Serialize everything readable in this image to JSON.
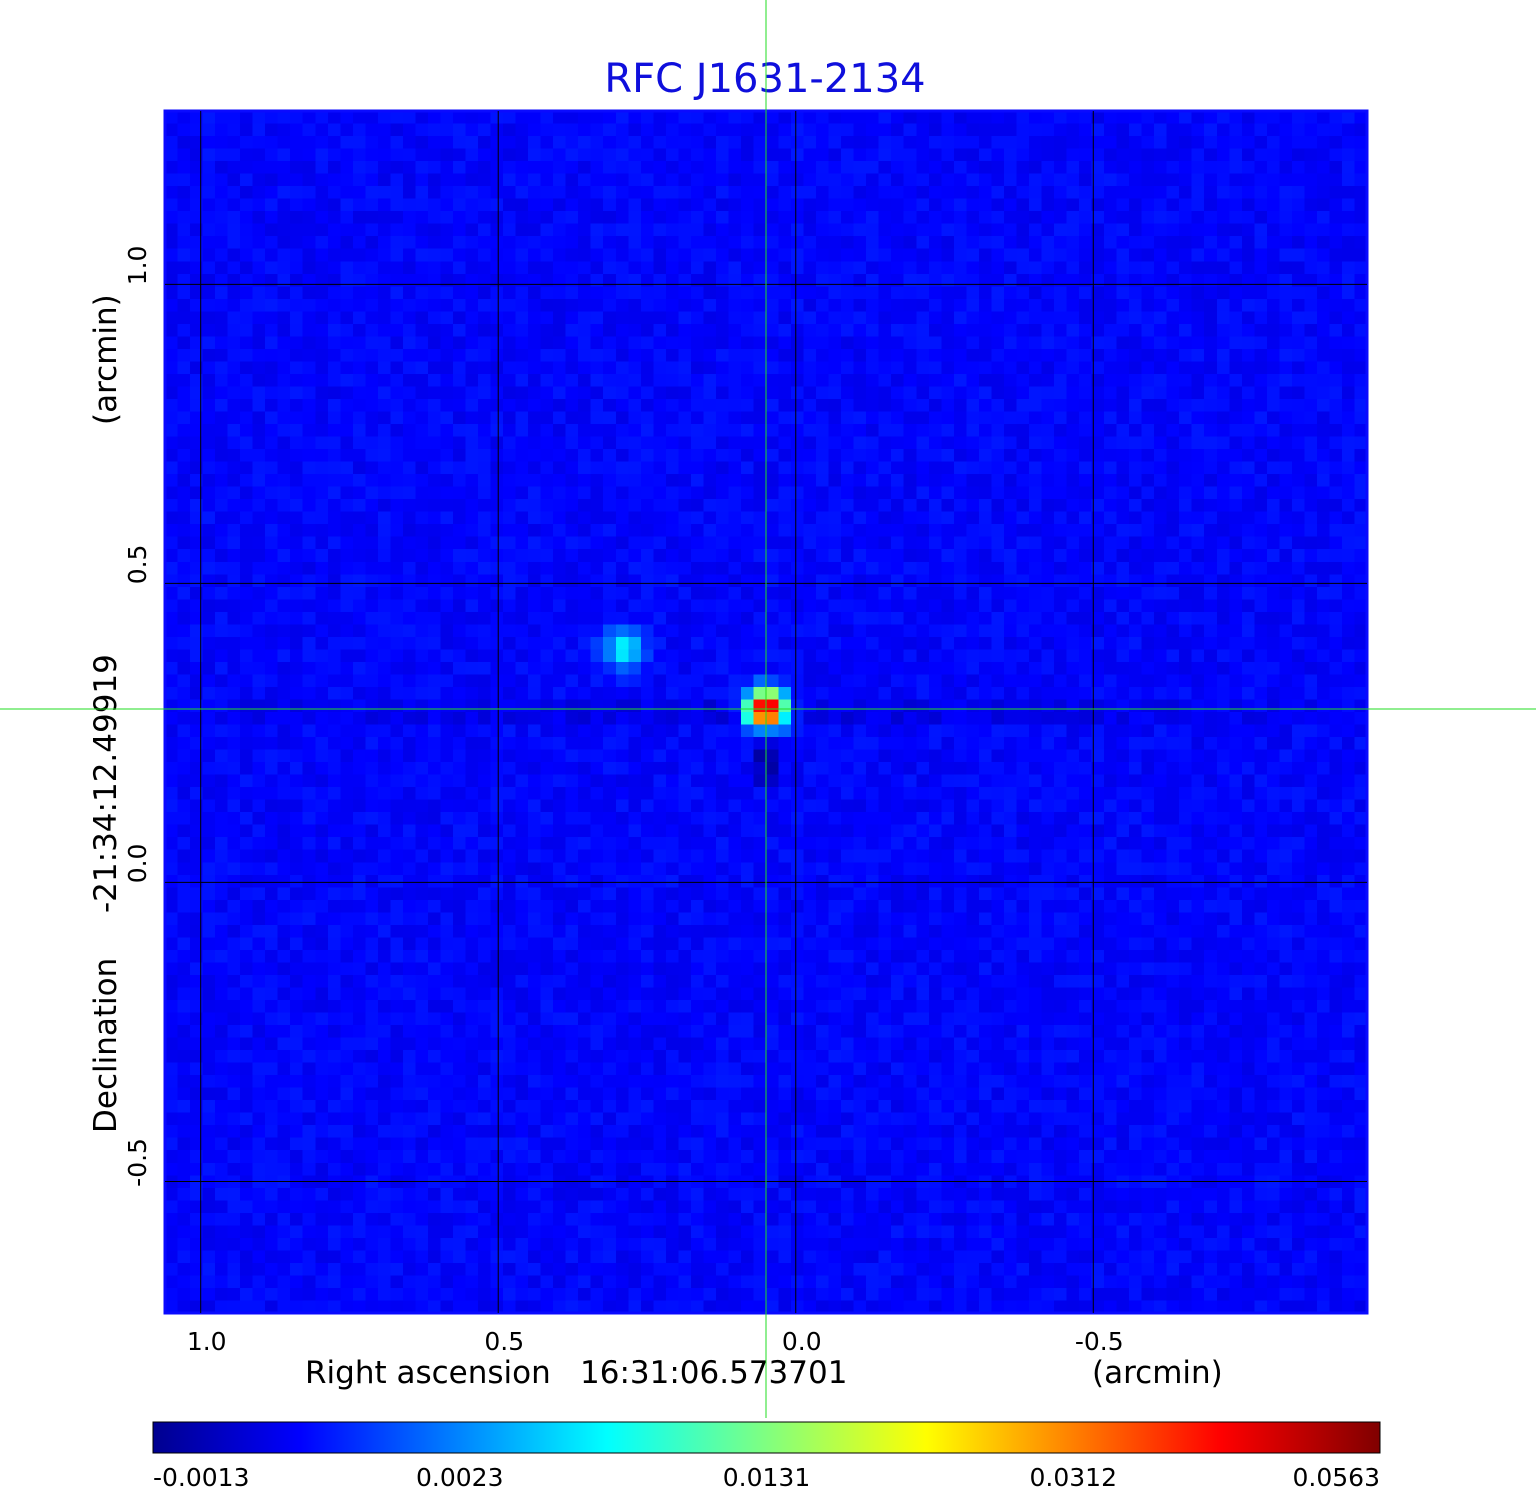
{
  "chart_data": {
    "type": "heatmap",
    "title": "RFC J1631-2134",
    "xlabel": "Right ascension",
    "xlabel_coord": "16:31:06.573701",
    "xlabel_unit": "(arcmin)",
    "ylabel": "Declination",
    "ylabel_coord": "-21:34:12.49919",
    "ylabel_unit": "(arcmin)",
    "x_ticks": [
      {
        "value": 1.0,
        "label": "1.0"
      },
      {
        "value": 0.5,
        "label": "0.5"
      },
      {
        "value": 0.0,
        "label": "0.0"
      },
      {
        "value": -0.5,
        "label": "-0.5"
      }
    ],
    "y_ticks": [
      {
        "value": 1.0,
        "label": "1.0"
      },
      {
        "value": 0.5,
        "label": "0.5"
      },
      {
        "value": 0.0,
        "label": "0.0"
      },
      {
        "value": -0.5,
        "label": "-0.5"
      }
    ],
    "xlim": [
      1.06,
      -0.96
    ],
    "ylim": [
      -0.72,
      1.29
    ],
    "grid": true,
    "crosshair": {
      "x": 0.05,
      "y": 0.29
    },
    "sources": [
      {
        "x": 0.05,
        "y": 0.29,
        "peak": 0.0563
      },
      {
        "x": 0.29,
        "y": 0.39,
        "peak": 0.0131
      }
    ],
    "colormap": "jet",
    "colorbar": {
      "ticks": [
        "-0.0013",
        "0.0023",
        "0.0131",
        "0.0312",
        "0.0563"
      ]
    }
  }
}
